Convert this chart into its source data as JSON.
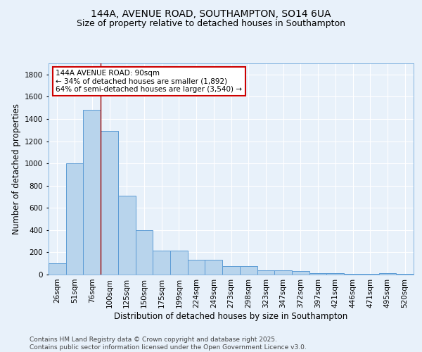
{
  "title_line1": "144A, AVENUE ROAD, SOUTHAMPTON, SO14 6UA",
  "title_line2": "Size of property relative to detached houses in Southampton",
  "xlabel": "Distribution of detached houses by size in Southampton",
  "ylabel": "Number of detached properties",
  "categories": [
    "26sqm",
    "51sqm",
    "76sqm",
    "100sqm",
    "125sqm",
    "150sqm",
    "175sqm",
    "199sqm",
    "224sqm",
    "249sqm",
    "273sqm",
    "298sqm",
    "323sqm",
    "347sqm",
    "372sqm",
    "397sqm",
    "421sqm",
    "446sqm",
    "471sqm",
    "495sqm",
    "520sqm"
  ],
  "values": [
    100,
    1000,
    1480,
    1290,
    710,
    400,
    215,
    215,
    135,
    135,
    75,
    75,
    35,
    35,
    30,
    10,
    10,
    5,
    5,
    15,
    5
  ],
  "bar_color": "#b8d4ec",
  "bar_edge_color": "#5b9bd5",
  "red_line_x": 2.5,
  "annotation_text": "144A AVENUE ROAD: 90sqm\n← 34% of detached houses are smaller (1,892)\n64% of semi-detached houses are larger (3,540) →",
  "annotation_box_facecolor": "#ffffff",
  "annotation_box_edgecolor": "#cc0000",
  "ylim": [
    0,
    1900
  ],
  "yticks": [
    0,
    200,
    400,
    600,
    800,
    1000,
    1200,
    1400,
    1600,
    1800
  ],
  "footer_line1": "Contains HM Land Registry data © Crown copyright and database right 2025.",
  "footer_line2": "Contains public sector information licensed under the Open Government Licence v3.0.",
  "bg_color": "#e8f1fa",
  "grid_color": "#d0dde8",
  "title_fontsize": 10,
  "subtitle_fontsize": 9,
  "axis_label_fontsize": 8.5,
  "tick_fontsize": 7.5,
  "annotation_fontsize": 7.5,
  "footer_fontsize": 6.5
}
